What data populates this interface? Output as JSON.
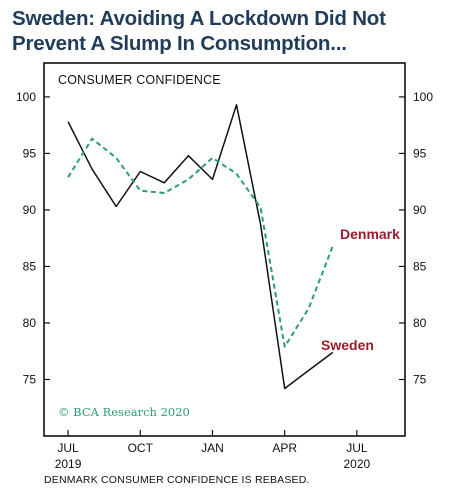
{
  "title_line1": "Sweden: Avoiding A Lockdown Did Not",
  "title_line2": "Prevent A Slump In Consumption...",
  "footnote": "DENMARK CONSUMER CONFIDENCE IS REBASED.",
  "colors": {
    "sweden": "#111111",
    "denmark": "#2a9d75",
    "label": "#9b1c2b",
    "title": "#1f3c5a"
  },
  "chart_data": {
    "type": "line",
    "panel_label": "CONSUMER CONFIDENCE",
    "source": "© BCA Research 2020",
    "x_ticks": [
      {
        "month": "2019-07",
        "label": "JUL",
        "sublabel": "2019"
      },
      {
        "month": "2019-10",
        "label": "OCT",
        "sublabel": ""
      },
      {
        "month": "2020-01",
        "label": "JAN",
        "sublabel": ""
      },
      {
        "month": "2020-04",
        "label": "APR",
        "sublabel": ""
      },
      {
        "month": "2020-07",
        "label": "JUL",
        "sublabel": "2020"
      }
    ],
    "xlim": [
      "2019-06",
      "2020-09"
    ],
    "ylim": [
      70,
      103
    ],
    "y_ticks_left": [
      75,
      80,
      85,
      90,
      95,
      100
    ],
    "y_ticks_right": [
      75,
      80,
      85,
      90,
      95,
      100
    ],
    "grid": false,
    "series": [
      {
        "name": "Sweden",
        "style": "solid",
        "x": [
          "2019-07",
          "2019-08",
          "2019-09",
          "2019-10",
          "2019-11",
          "2019-12",
          "2020-01",
          "2020-02",
          "2020-03",
          "2020-04",
          "2020-05",
          "2020-06"
        ],
        "values": [
          97.8,
          93.6,
          90.3,
          93.4,
          92.4,
          94.8,
          92.7,
          99.3,
          88.7,
          74.2,
          75.8,
          77.4
        ]
      },
      {
        "name": "Denmark",
        "style": "dashed",
        "x": [
          "2019-07",
          "2019-08",
          "2019-09",
          "2019-10",
          "2019-11",
          "2019-12",
          "2020-01",
          "2020-02",
          "2020-03",
          "2020-04",
          "2020-05",
          "2020-06"
        ],
        "values": [
          92.9,
          96.3,
          94.6,
          91.7,
          91.5,
          92.7,
          94.6,
          93.2,
          90.2,
          77.9,
          81.3,
          86.8
        ]
      }
    ]
  }
}
